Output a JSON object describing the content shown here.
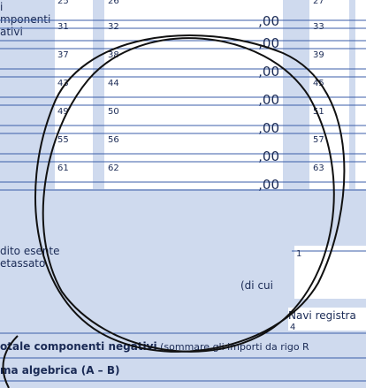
{
  "left_label": [
    "i",
    "mponenti",
    "ativi"
  ],
  "rows": [
    {
      "codes": [
        "25",
        "26",
        "27"
      ],
      "amount": ",00"
    },
    {
      "codes": [
        "31",
        "32",
        "33"
      ],
      "amount": ",00"
    },
    {
      "codes": [
        "37",
        "38",
        "39"
      ],
      "amount": ",00"
    },
    {
      "codes": [
        "43",
        "44",
        "45"
      ],
      "amount": ",00"
    },
    {
      "codes": [
        "49",
        "50",
        "51"
      ],
      "amount": ",00"
    },
    {
      "codes": [
        "55",
        "56",
        "57"
      ],
      "amount": ",00"
    },
    {
      "codes": [
        "61",
        "62",
        "63"
      ],
      "amount": ",00"
    }
  ],
  "exempt_label": [
    "dito esente",
    "etassato"
  ],
  "of_which": "(di cui",
  "box1": "1",
  "ships": "Navi registra",
  "box4": "4",
  "total_bold": "otale componenti negativi",
  "total_rest": " (sommare gli importi da rigo R",
  "sum_label": "ma algebrica (A – B)"
}
